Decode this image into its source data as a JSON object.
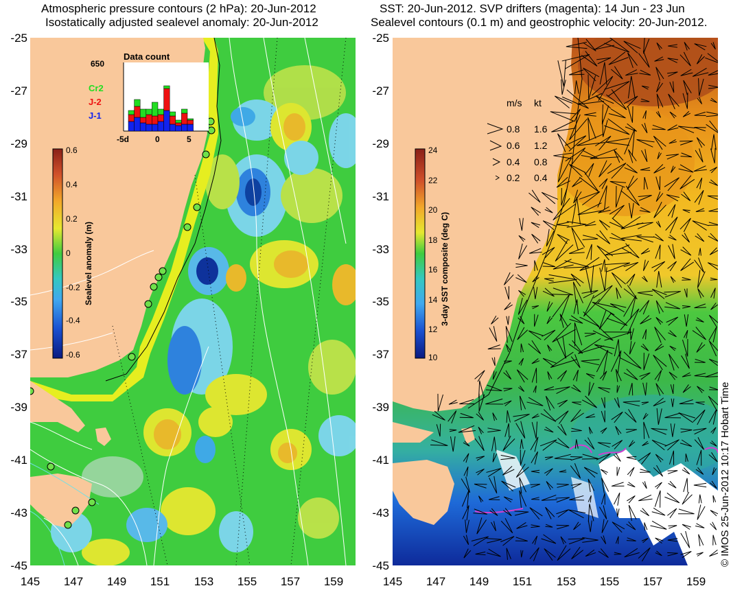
{
  "left_panel": {
    "title_line1": "Atmospheric pressure contours (2 hPa): 20-Jun-2012",
    "title_line2": "Isostatically adjusted sealevel anomaly: 20-Jun-2012",
    "colorbar": {
      "label": "Sealevel anomaly (m)",
      "ticks": [
        "0.6",
        "0.4",
        "0.2",
        "0",
        "-0.2",
        "-0.4",
        "-0.6"
      ],
      "range": [
        -0.6,
        0.6
      ]
    },
    "inset": {
      "title": "Data count",
      "max_label": "650",
      "legend": [
        {
          "label": "Cr2",
          "color": "#22dd22"
        },
        {
          "label": "J-2",
          "color": "#ee1111"
        },
        {
          "label": "J-1",
          "color": "#1122ee"
        }
      ],
      "x_ticks": [
        "-5d",
        "0",
        "5"
      ]
    }
  },
  "right_panel": {
    "title_line1": "SST: 20-Jun-2012. SVP drifters (magenta): 14 Jun - 23 Jun",
    "title_line2": "Sealevel contours (0.1 m) and geostrophic velocity: 20-Jun-2012.",
    "colorbar": {
      "label": "3-day SST composite (deg C)",
      "ticks": [
        "24",
        "22",
        "20",
        "18",
        "16",
        "14",
        "12",
        "10"
      ],
      "range": [
        10,
        24
      ]
    },
    "velocity_legend": {
      "header_ms": "m/s",
      "header_kt": "kt",
      "rows": [
        {
          "ms": "0.8",
          "kt": "1.6"
        },
        {
          "ms": "0.6",
          "kt": "1.2"
        },
        {
          "ms": "0.4",
          "kt": "0.8"
        },
        {
          "ms": "0.2",
          "kt": "0.4"
        }
      ]
    }
  },
  "axes": {
    "lat_ticks": [
      "-25",
      "-27",
      "-29",
      "-31",
      "-33",
      "-35",
      "-37",
      "-39",
      "-41",
      "-43",
      "-45"
    ],
    "lon_ticks": [
      "145",
      "147",
      "149",
      "151",
      "153",
      "155",
      "157",
      "159"
    ],
    "lat_range": [
      -45,
      -25
    ],
    "lon_range": [
      145,
      160
    ]
  },
  "credit": "© IMOS 25-Jun-2012 10:17 Hobart Time",
  "colors": {
    "land": "#f9c89b",
    "ocean_green": "#3ccd3c",
    "white": "#ffffff"
  }
}
